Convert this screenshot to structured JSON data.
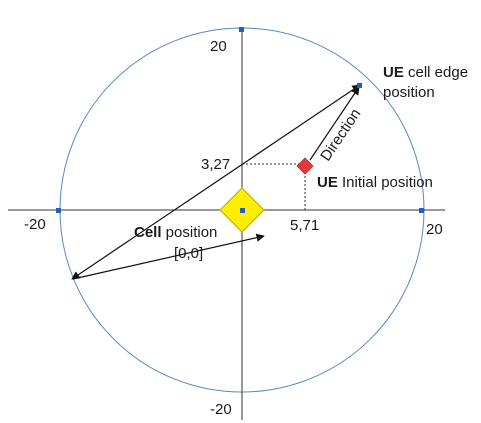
{
  "axes": {
    "x_min_label": "-20",
    "x_max_label": "20",
    "y_max_label": "20",
    "y_min_label": "-20"
  },
  "markers": {
    "ue_x_value": "5,71",
    "ue_y_value": "3,27"
  },
  "labels": {
    "ue_edge_bold": "UE",
    "ue_edge_rest": " cell edge",
    "ue_edge_line2": "position",
    "direction": "Direction",
    "ue_initial_bold": "UE",
    "ue_initial_rest": " Initial position",
    "cell_bold": "Cell",
    "cell_rest": " position",
    "cell_coords": "[0,0]"
  },
  "colors": {
    "circle": "#5b86c4",
    "axis": "#333333",
    "arrow": "#111111",
    "cell_fill": "#ffee00",
    "cell_stroke": "#b8a800",
    "ue_fill": "#e0393e",
    "point_blue": "#1f5fbf"
  },
  "icons": [
    "cell-diamond-icon",
    "ue-diamond-icon",
    "axis-point-icon"
  ]
}
